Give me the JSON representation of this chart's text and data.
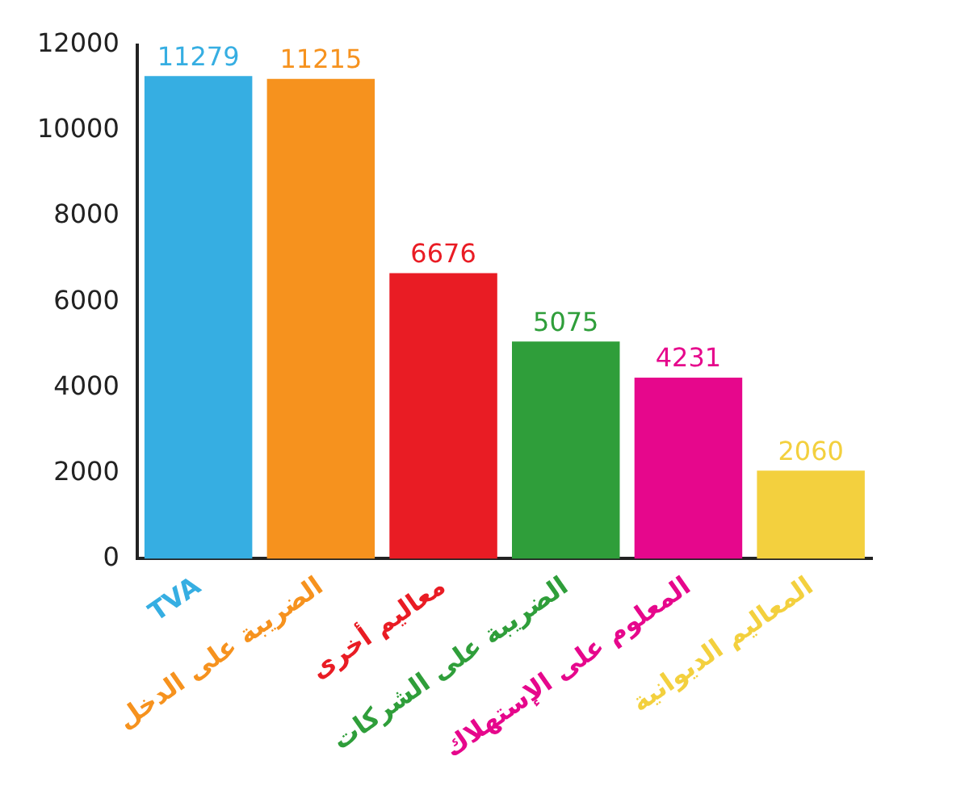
{
  "chart_data": {
    "type": "bar",
    "categories": [
      "TVA",
      "الضريبة على الدخل",
      "معاليم أخرى",
      "الضريبة على الشركات",
      "المعلوم على الإستهلاك",
      "المعاليم الديوانية"
    ],
    "values": [
      11279,
      11215,
      6676,
      5075,
      4231,
      2060
    ],
    "colors": [
      "#36aee2",
      "#f6921e",
      "#e91c24",
      "#2f9e3a",
      "#e6078c",
      "#f3d03e"
    ],
    "ylim": [
      0,
      12000
    ],
    "yticks": [
      0,
      2000,
      4000,
      6000,
      8000,
      10000,
      12000
    ],
    "grid": false,
    "legend": false,
    "data_labels": true
  }
}
